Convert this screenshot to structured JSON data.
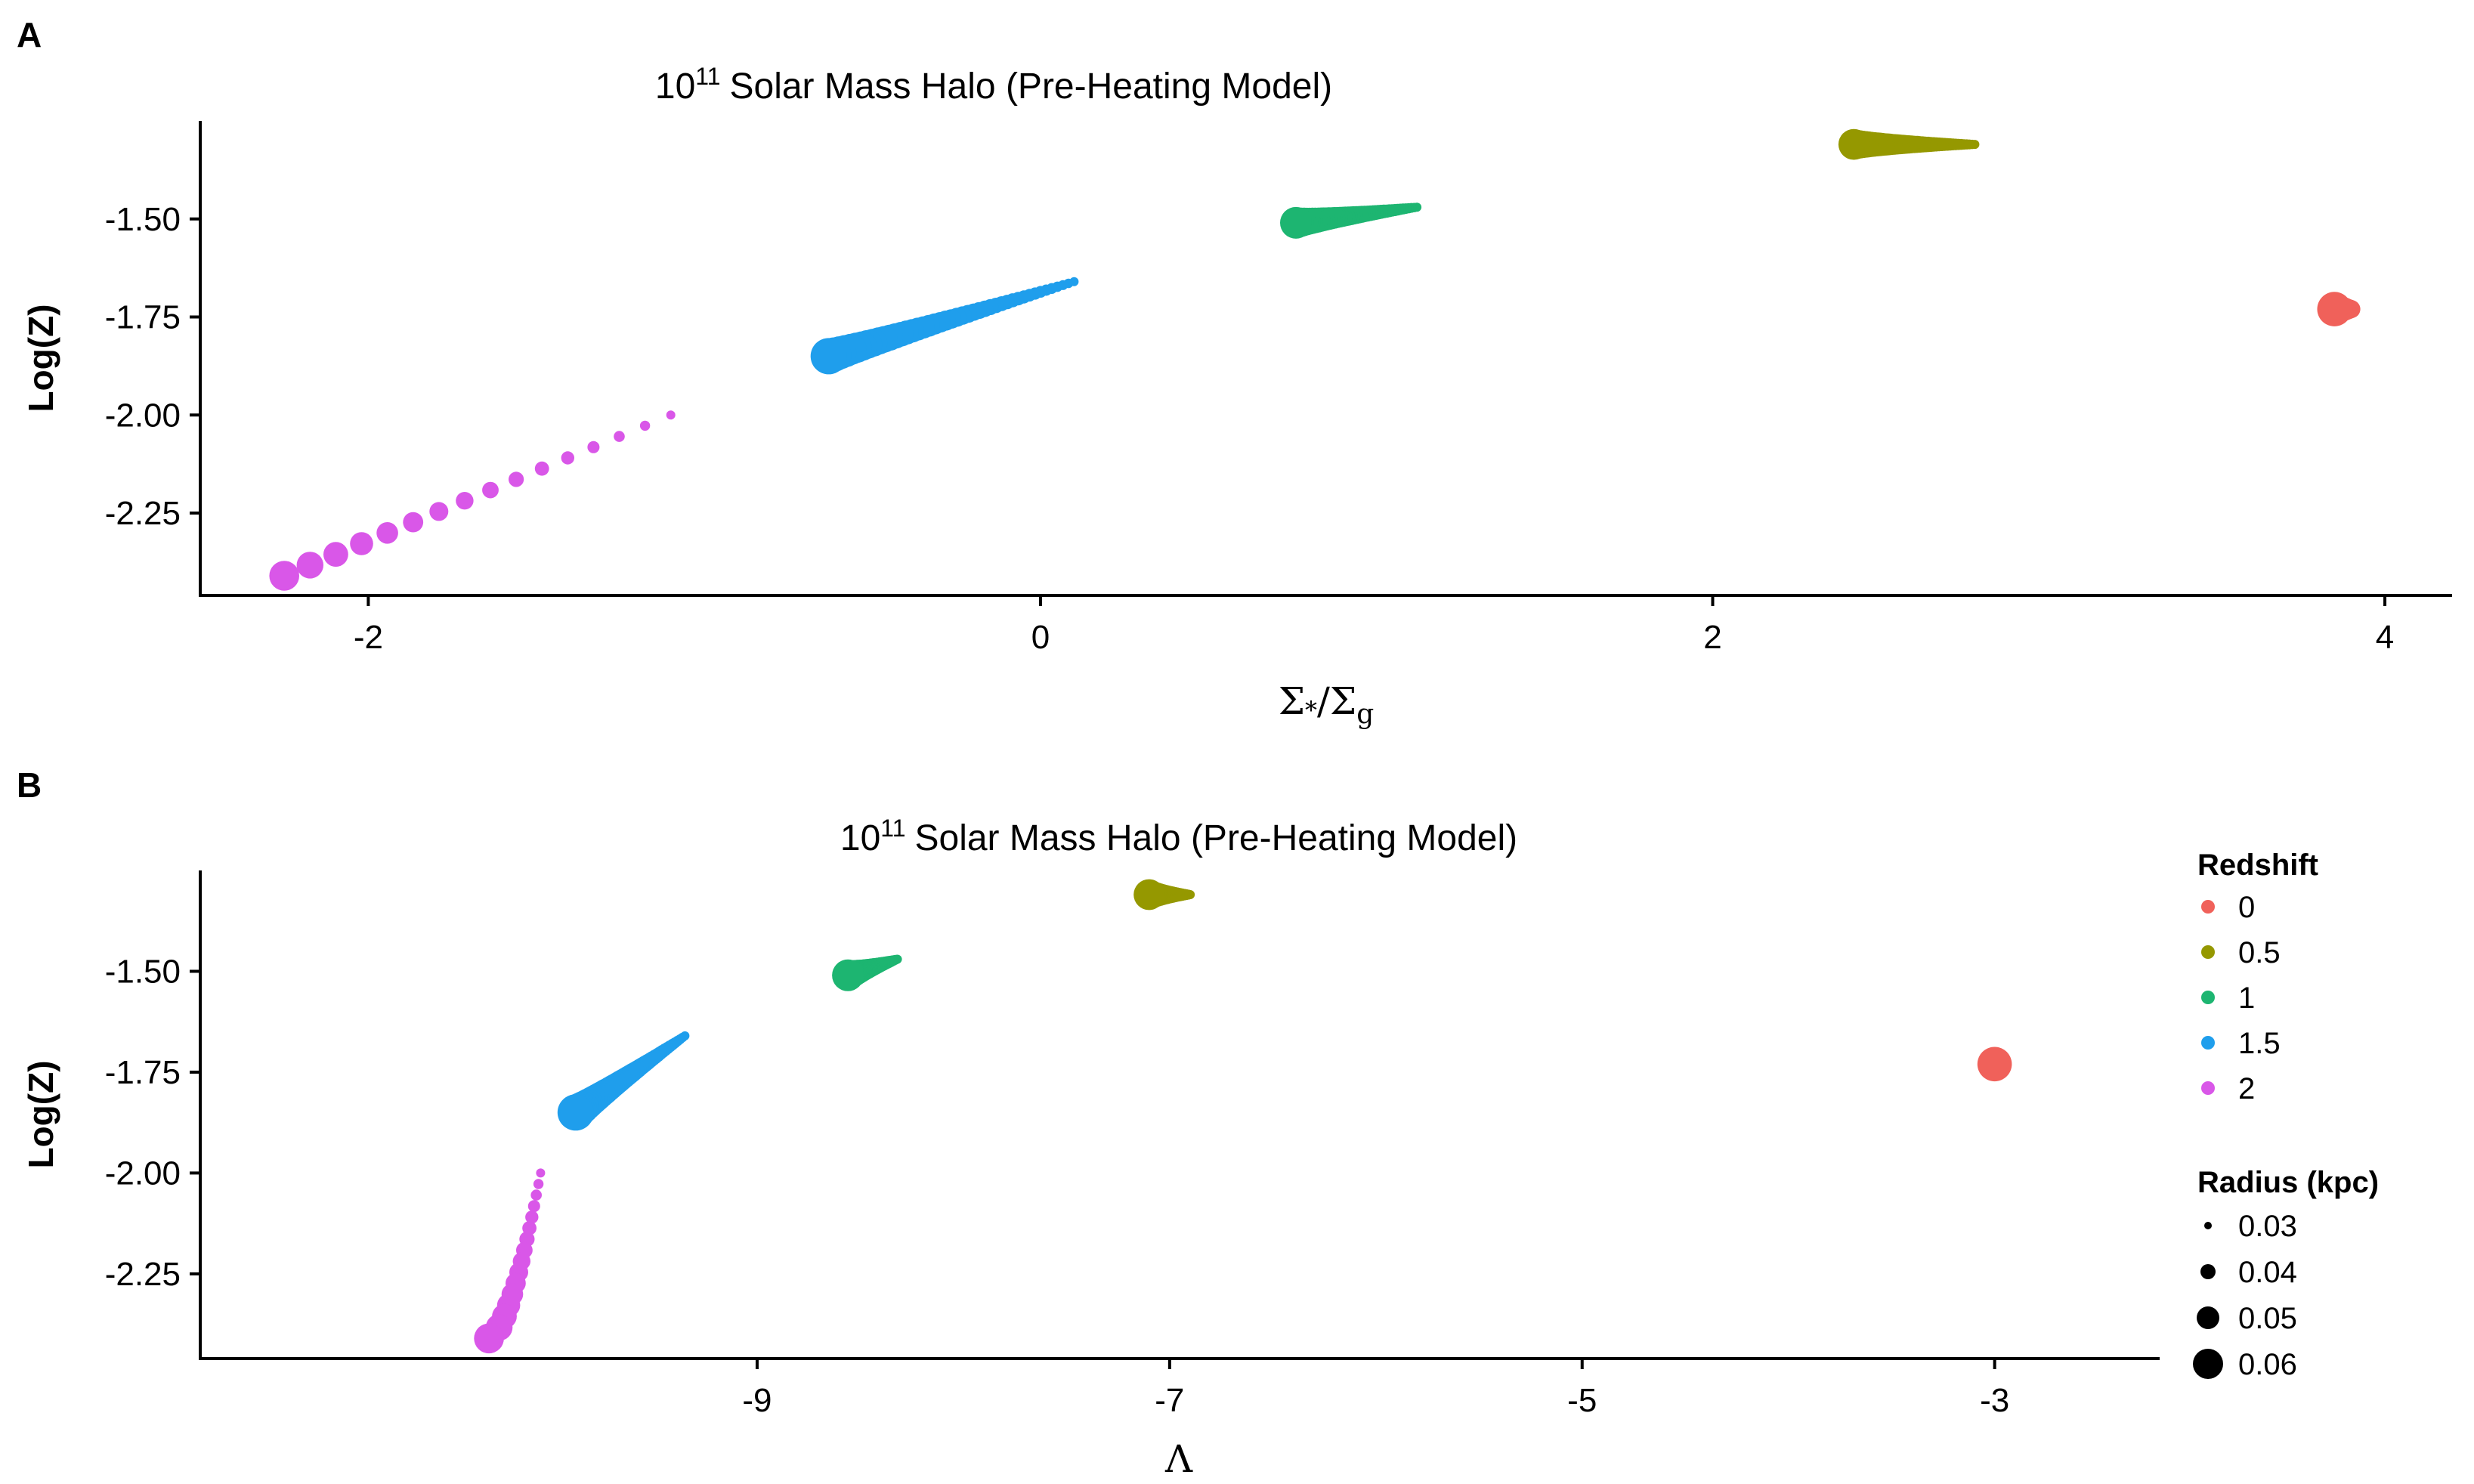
{
  "colors": {
    "z0": "#F0615A",
    "z05": "#959800",
    "z1": "#1DB571",
    "z15": "#1F9EEC",
    "z2": "#D957E8"
  },
  "legend": {
    "color_title": "Redshift",
    "color_entries": [
      "0",
      "0.5",
      "1",
      "1.5",
      "2"
    ],
    "size_title": "Radius (kpc)",
    "size_entries": [
      "0.03",
      "0.04",
      "0.05",
      "0.06"
    ]
  },
  "chart_data": [
    {
      "panel": "A",
      "type": "scatter",
      "title_base": "10",
      "title_sup": "11",
      "title_rest": "Solar Mass Halo (Pre-Heating Model)",
      "ylabel": "Log(Z)",
      "xlabel_parts": [
        "Σ",
        "*",
        "/Σ",
        "g"
      ],
      "xlim": [
        -2.5,
        4.2
      ],
      "ylim": [
        -2.46,
        -1.25
      ],
      "xticks": [
        "-2",
        "0",
        "2",
        "4"
      ],
      "xtick_values": [
        -2,
        0,
        2,
        4
      ],
      "yticks": [
        "-1.50",
        "-1.75",
        "-2.00",
        "-2.25"
      ],
      "ytick_values": [
        -1.5,
        -1.75,
        -2.0,
        -2.25
      ],
      "series": [
        {
          "redshift": "2",
          "x_start": -2.25,
          "x_end": -1.1,
          "y_start": -2.41,
          "y_end": -2.0,
          "r_start": 0.053,
          "r_end": 0.03,
          "count": 16
        },
        {
          "redshift": "1.5",
          "x_start": -0.63,
          "x_end": 0.1,
          "y_start": -1.85,
          "y_end": -1.66,
          "r_start": 0.06,
          "r_end": 0.03,
          "count": 45
        },
        {
          "redshift": "1",
          "x_start": 0.76,
          "x_end": 1.12,
          "y_start": -1.51,
          "y_end": -1.47,
          "r_start": 0.055,
          "r_end": 0.03,
          "count": 45
        },
        {
          "redshift": "0.5",
          "x_start": 2.42,
          "x_end": 2.78,
          "y_start": -1.31,
          "y_end": -1.31,
          "r_start": 0.054,
          "r_end": 0.03,
          "count": 45
        },
        {
          "redshift": "0",
          "x_start": 3.85,
          "x_end": 3.9,
          "y_start": -1.73,
          "y_end": -1.73,
          "r_start": 0.058,
          "r_end": 0.04,
          "count": 10
        }
      ]
    },
    {
      "panel": "B",
      "type": "scatter",
      "title_base": "10",
      "title_sup": "11",
      "title_rest": "Solar Mass Halo (Pre-Heating Model)",
      "ylabel": "Log(Z)",
      "xlabel": "Λ",
      "xlim": [
        -11.7,
        -2.2
      ],
      "ylim": [
        -2.46,
        -1.25
      ],
      "xticks": [
        "-9",
        "-7",
        "-5",
        "-3"
      ],
      "xtick_values": [
        -9,
        -7,
        -5,
        -3
      ],
      "yticks": [
        "-1.50",
        "-1.75",
        "-2.00",
        "-2.25"
      ],
      "ytick_values": [
        -1.5,
        -1.75,
        -2.0,
        -2.25
      ],
      "series": [
        {
          "redshift": "2",
          "x_start": -10.3,
          "x_end": -10.05,
          "y_start": -2.41,
          "y_end": -2.0,
          "r_start": 0.053,
          "r_end": 0.03,
          "count": 16,
          "curve": 0.6
        },
        {
          "redshift": "1.5",
          "x_start": -9.88,
          "x_end": -9.35,
          "y_start": -1.85,
          "y_end": -1.66,
          "r_start": 0.06,
          "r_end": 0.03,
          "count": 45
        },
        {
          "redshift": "1",
          "x_start": -8.56,
          "x_end": -8.32,
          "y_start": -1.51,
          "y_end": -1.47,
          "r_start": 0.055,
          "r_end": 0.03,
          "count": 45
        },
        {
          "redshift": "0.5",
          "x_start": -7.1,
          "x_end": -6.9,
          "y_start": -1.31,
          "y_end": -1.31,
          "r_start": 0.054,
          "r_end": 0.03,
          "count": 45
        },
        {
          "redshift": "0",
          "x_start": -3.0,
          "x_end": -3.0,
          "y_start": -1.73,
          "y_end": -1.73,
          "r_start": 0.058,
          "r_end": 0.058,
          "count": 1
        }
      ]
    }
  ]
}
